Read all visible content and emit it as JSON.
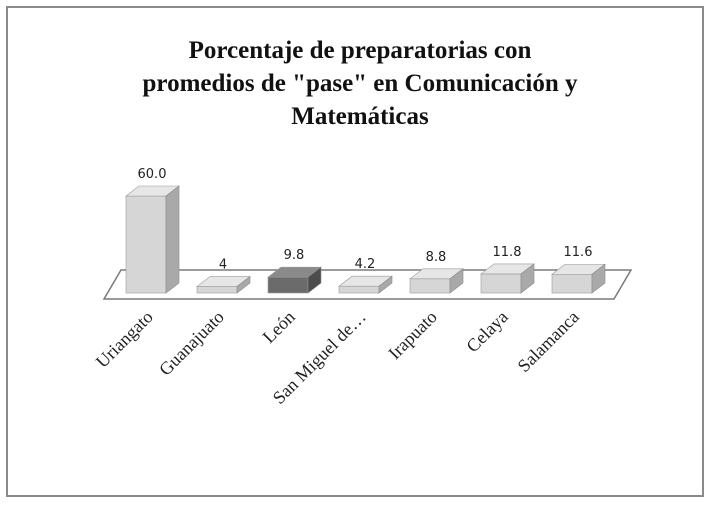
{
  "chart_data": {
    "type": "bar",
    "title_lines": [
      "Porcentaje de preparatorias  con",
      "promedios de \"pase\" en Comunicación y",
      "Matemáticas"
    ],
    "categories": [
      "Uriangato",
      "Guanajuato",
      "León",
      "San Miguel de…",
      "Irapuato",
      "Celaya",
      "Salamanca"
    ],
    "values": [
      60.0,
      4,
      9.8,
      4.2,
      8.8,
      11.8,
      11.6
    ],
    "value_labels": [
      "60.0",
      "4",
      "9.8",
      "4.2",
      "8.8",
      "11.8",
      "11.6"
    ],
    "highlight_category": "León",
    "colors": {
      "bar_front": "#d6d6d6",
      "bar_top": "#e6e6e6",
      "bar_side": "#a9a9a9",
      "highlight_front": "#6b6b6b",
      "highlight_top": "#8a8a8a",
      "highlight_side": "#4c4c4c",
      "floor": "#ffffff",
      "floor_stroke": "#7a7a7a"
    },
    "grid": false,
    "legend": "none"
  }
}
